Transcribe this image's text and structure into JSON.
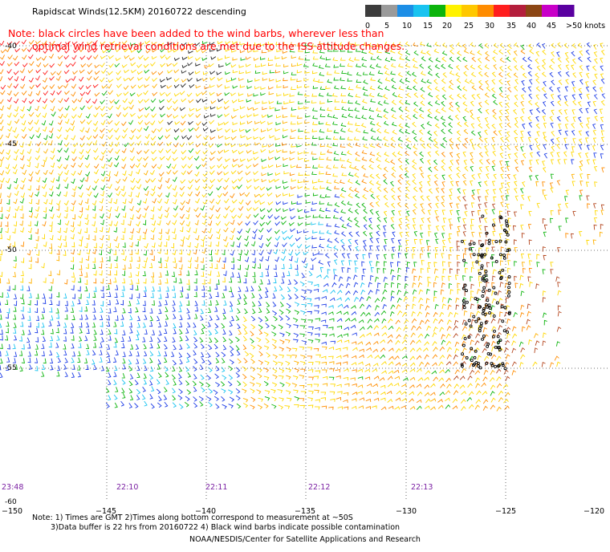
{
  "header": {
    "title": "Rapidscat Winds(12.5KM) 20160722 descending"
  },
  "note": {
    "line1": "Note: black circles have been added to the wind barbs, wherever less than",
    "line2": "optimal wind retrieval conditions are met due to the ISS attitude changes."
  },
  "legend": {
    "colors": [
      "#3c3c3c",
      "#9a9a9a",
      "#1c8ee6",
      "#19c3f0",
      "#0cb40c",
      "#fff200",
      "#ffc800",
      "#ff8c00",
      "#ff1e1e",
      "#b41e3c",
      "#8c4614",
      "#c800c8",
      "#5a00a0"
    ],
    "labels": [
      "0",
      "5",
      "10",
      "15",
      "20",
      "25",
      "30",
      "35",
      "40",
      "45",
      ">50 knots"
    ]
  },
  "map": {
    "lat_labels": [
      "-40",
      "-45",
      "-50",
      "-55",
      "-60"
    ],
    "lon_labels": [
      "−150",
      "−145",
      "−140",
      "−135",
      "−130",
      "−125",
      "−120"
    ],
    "time_labels": [
      "23:48",
      "22:10",
      "22:11",
      "22:12",
      "22:13"
    ]
  },
  "footer": {
    "line1": "Note: 1) Times are GMT 2)Times along bottom correspond to measurement at ~50S",
    "line2": "3)Data buffer is 22 hrs from 20160722 4) Black wind barbs indicate possible contamination",
    "credit": "NOAA/NESDIS/Center for Satellite Applications and Research"
  }
}
